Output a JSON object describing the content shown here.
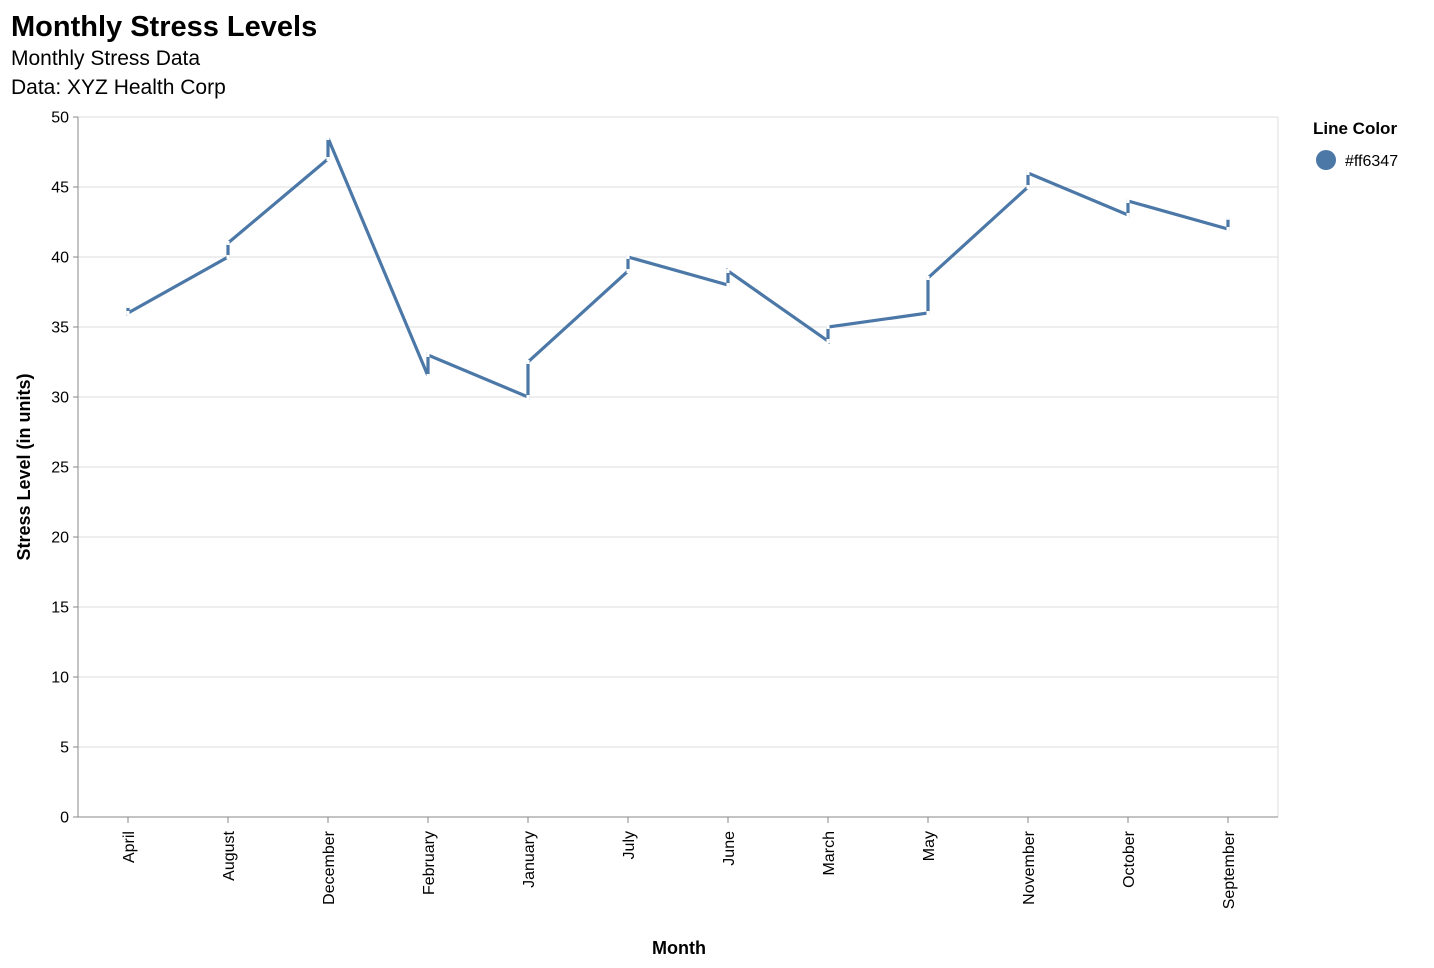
{
  "chart_data": {
    "type": "line",
    "title": "Monthly Stress Levels",
    "subtitles": [
      "Monthly Stress Data",
      "Data: XYZ Health Corp"
    ],
    "xlabel": "Month",
    "ylabel": "Stress Level (in units)",
    "categories": [
      "April",
      "August",
      "December",
      "February",
      "January",
      "July",
      "June",
      "March",
      "May",
      "November",
      "October",
      "September"
    ],
    "ylim": [
      0,
      50
    ],
    "yticks": [
      0,
      5,
      10,
      15,
      20,
      25,
      30,
      35,
      40,
      45,
      50
    ],
    "grid": true,
    "legend": {
      "title": "Line Color",
      "placement": "top-right",
      "items": [
        {
          "label": "#ff6347",
          "color": "#4c78a8"
        }
      ]
    },
    "series": [
      {
        "color": "#4c78a8",
        "segments": [
          {
            "category": "April",
            "start": 36.5,
            "end": 36.0
          },
          {
            "category": "August",
            "start": 40.0,
            "end": 41.0
          },
          {
            "category": "December",
            "start": 47.0,
            "end": 48.5
          },
          {
            "category": "February",
            "start": 31.5,
            "end": 33.0
          },
          {
            "category": "January",
            "start": 30.0,
            "end": 32.5
          },
          {
            "category": "July",
            "start": 39.0,
            "end": 40.0
          },
          {
            "category": "June",
            "start": 38.0,
            "end": 39.0
          },
          {
            "category": "March",
            "start": 34.0,
            "end": 35.0
          },
          {
            "category": "May",
            "start": 36.0,
            "end": 38.5
          },
          {
            "category": "November",
            "start": 45.0,
            "end": 46.0
          },
          {
            "category": "October",
            "start": 43.0,
            "end": 44.0
          },
          {
            "category": "September",
            "start": 42.0,
            "end": 42.8
          }
        ]
      }
    ]
  }
}
